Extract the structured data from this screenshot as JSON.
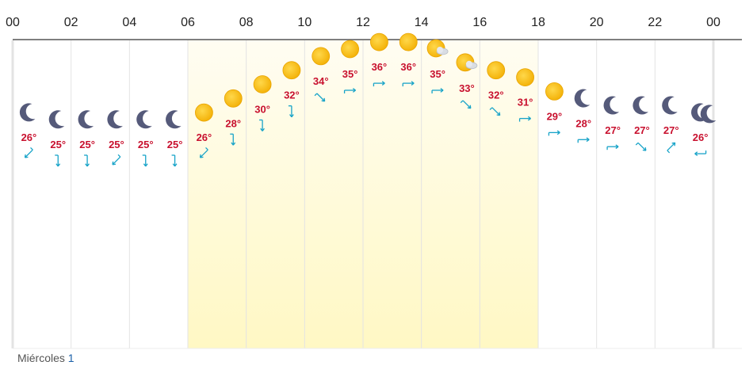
{
  "chart_data": {
    "type": "line",
    "title": "",
    "xlabel": "",
    "ylabel": "",
    "x_tick_labels": [
      "00",
      "02",
      "04",
      "06",
      "08",
      "10",
      "12",
      "14",
      "16",
      "18",
      "20",
      "22",
      "00"
    ],
    "hours": [
      0,
      1,
      2,
      3,
      4,
      5,
      6,
      7,
      8,
      9,
      10,
      11,
      12,
      13,
      14,
      15,
      16,
      17,
      18,
      19,
      20,
      21,
      22,
      23,
      24
    ],
    "series": [
      {
        "values": [
          26,
          25,
          25,
          25,
          25,
          25,
          26,
          28,
          30,
          32,
          34,
          35,
          36,
          36,
          35,
          33,
          32,
          31,
          29,
          28,
          27,
          27,
          27,
          26
        ]
      }
    ],
    "value_labels": [
      "26°",
      "25°",
      "25°",
      "25°",
      "25°",
      "25°",
      "26°",
      "28°",
      "30°",
      "32°",
      "34°",
      "35°",
      "36°",
      "36°",
      "35°",
      "33°",
      "32°",
      "31°",
      "29°",
      "28°",
      "27°",
      "27°",
      "27°",
      "26°"
    ],
    "weather_icons": [
      "moon-icon",
      "moon-icon",
      "moon-icon",
      "moon-icon",
      "moon-icon",
      "moon-icon",
      "sun-icon",
      "sun-icon",
      "sun-icon",
      "sun-icon",
      "sun-icon",
      "sun-icon",
      "sun-icon",
      "sun-icon",
      "sun-cloud-icon",
      "sun-cloud-icon",
      "sun-icon",
      "sun-icon",
      "sun-icon",
      "moon-icon",
      "moon-icon",
      "moon-icon",
      "moon-icon",
      "moon-icon",
      "moon-icon"
    ],
    "wind_icons": [
      "wind-sw-icon",
      "wind-s-icon",
      "wind-s-icon",
      "wind-sw-icon",
      "wind-s-icon",
      "wind-s-icon",
      "wind-sw-icon",
      "wind-s-icon",
      "wind-s-icon",
      "wind-s-icon",
      "wind-se-icon",
      "wind-e-icon",
      "wind-e-icon",
      "wind-e-icon",
      "wind-e-icon",
      "wind-se-icon",
      "wind-se-icon",
      "wind-e-icon",
      "wind-e-icon",
      "wind-e-icon",
      "wind-e-icon",
      "wind-se-icon",
      "wind-ne-icon",
      "wind-w-icon"
    ],
    "daylight_hours": [
      6,
      18
    ],
    "grid": true,
    "colors": {
      "temperature_label": "#c8102e",
      "wind_arrow": "#17a3c8",
      "moon": "#555a7a",
      "sun": "#f5b800",
      "daylight": "#fffbe0",
      "grid_line": "#e3e3e3"
    }
  },
  "footer": {
    "day_name": "Miércoles",
    "day_number": "1"
  }
}
